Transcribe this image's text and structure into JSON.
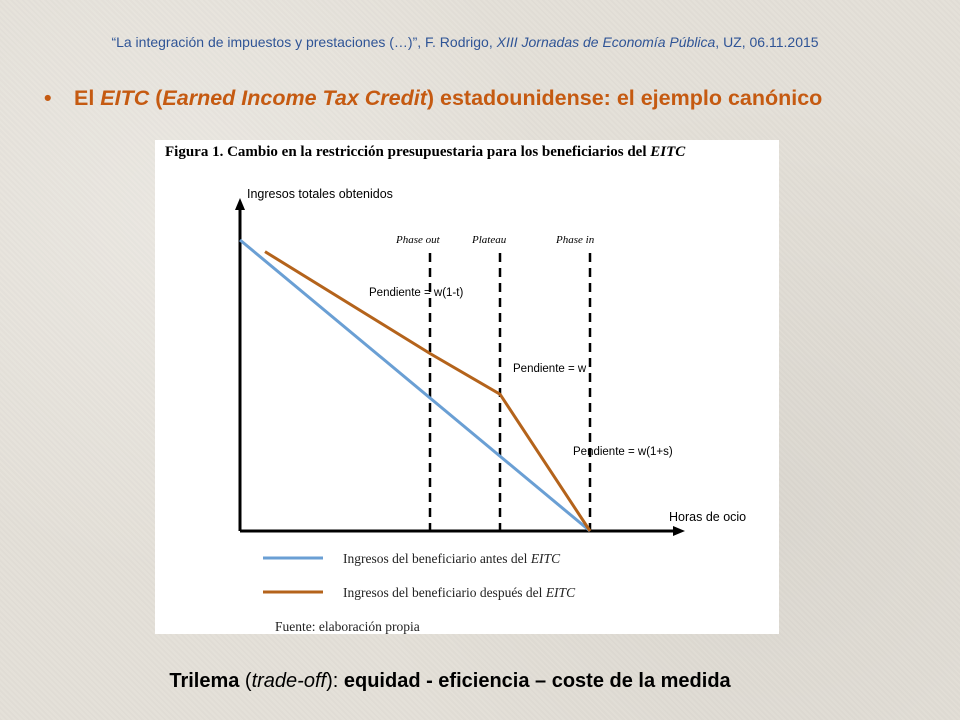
{
  "header": {
    "prefix": "“La integración de impuestos y prestaciones (…)”, F. Rodrigo, ",
    "event": "XIII Jornadas de Economía Pública",
    "suffix": ", UZ, 06.11.2015"
  },
  "bullet": {
    "dot": "•",
    "part1": "El ",
    "part2": "EITC",
    "part3": " (",
    "part4": "Earned Income Tax Credit",
    "part5": ") estadounidense: el ejemplo canónico"
  },
  "chart_data": {
    "type": "line",
    "title_bold": "Figura 1. Cambio en la restricción presupuestaria para los beneficiarios del ",
    "title_italic": "EITC",
    "ylabel": "Ingresos totales obtenidos",
    "xlabel": "Horas de ocio",
    "regions": [
      {
        "label": "Phase out",
        "boundary_x": 0.38
      },
      {
        "label": "Plateau",
        "boundary_x": 0.52
      },
      {
        "label": "Phase in",
        "boundary_x": 0.7
      }
    ],
    "series": [
      {
        "name": "Ingresos del beneficiario antes del EITC",
        "color": "#6a9fd4",
        "x": [
          0.0,
          0.7
        ],
        "y": [
          1.0,
          0.0
        ]
      },
      {
        "name": "Ingresos del beneficiario después del EITC",
        "color": "#b4631b",
        "x": [
          0.05,
          0.38,
          0.52,
          0.7
        ],
        "y": [
          0.96,
          0.61,
          0.47,
          0.0
        ]
      }
    ],
    "annotations": [
      {
        "text": "Pendiente = w(1-t)"
      },
      {
        "text": "Pendiente = w"
      },
      {
        "text": "Pendiente = w(1+s)"
      }
    ],
    "legend": [
      {
        "label_prefix": "Ingresos del beneficiario antes del ",
        "label_italic": "EITC",
        "color": "#6a9fd4"
      },
      {
        "label_prefix": "Ingresos del beneficiario después del ",
        "label_italic": "EITC",
        "color": "#b4631b"
      }
    ],
    "source": "Fuente: elaboración propia"
  },
  "footer": {
    "part1": "Trilema",
    "part2": " (",
    "part3": "trade-off",
    "part4": "): ",
    "part5": "equidad - eficiencia – coste de la medida"
  }
}
